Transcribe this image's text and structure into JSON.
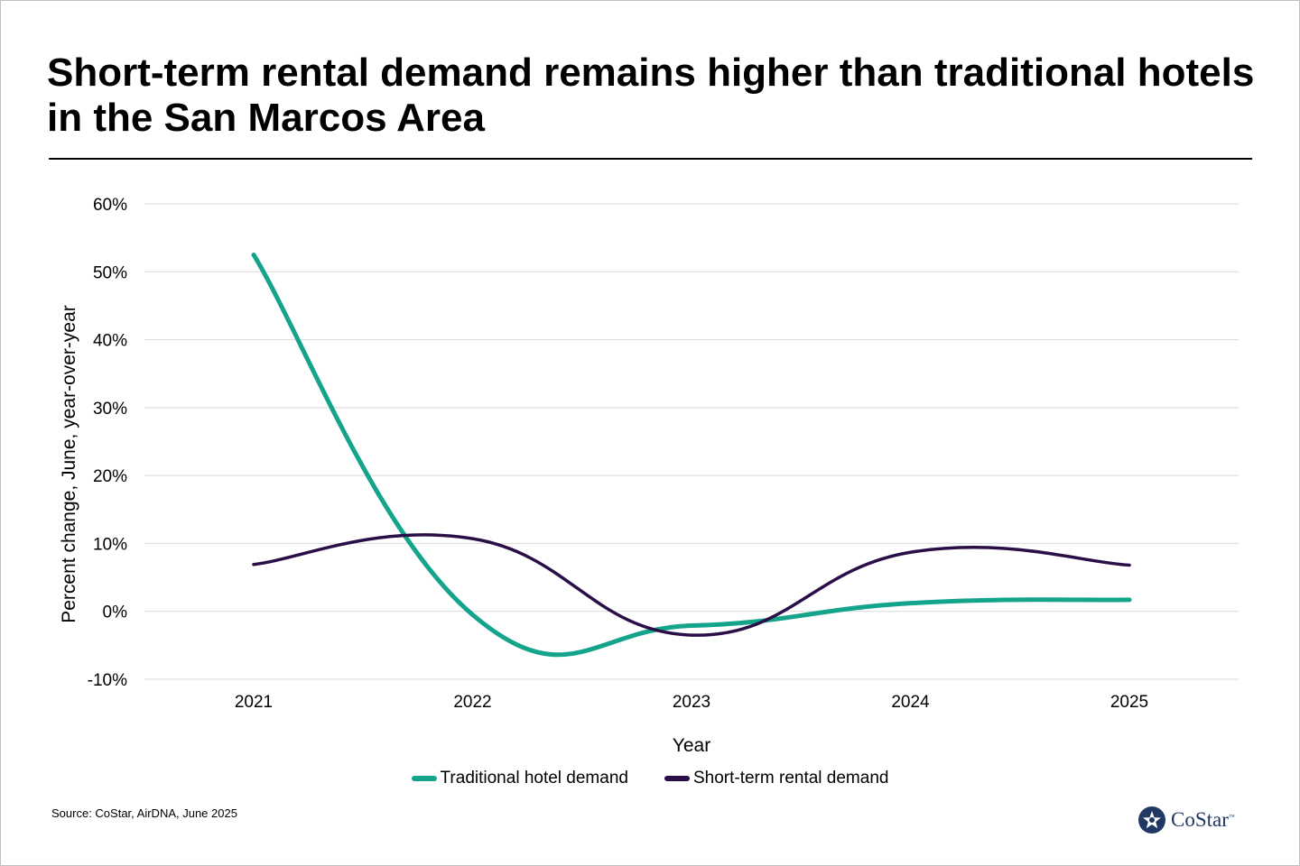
{
  "title": "Short-term rental demand remains higher than traditional hotels in the San Marcos Area",
  "source": "Source: CoStar,  AirDNA, June 2025",
  "logo": {
    "name": "costar-logo",
    "text": "CoStar",
    "tm": "™",
    "color": "#1f3864"
  },
  "chart_data": {
    "type": "line",
    "x": [
      "2021",
      "2022",
      "2023",
      "2024",
      "2025"
    ],
    "xlabel": "Year",
    "ylabel": "Percent change,  June, year-over-year",
    "ylim": [
      -10,
      60
    ],
    "yticks": [
      60,
      50,
      40,
      30,
      20,
      10,
      0,
      -10
    ],
    "ytick_labels": [
      "60%",
      "50%",
      "40%",
      "30%",
      "20%",
      "10%",
      "0%",
      "-10%"
    ],
    "grid": true,
    "legend_position": "bottom",
    "smoothed": true,
    "series": [
      {
        "name": "Traditional hotel demand",
        "color": "#14a38b",
        "values": [
          52.5,
          -0.5,
          -2.1,
          1.2,
          1.7
        ]
      },
      {
        "name": "Short-term rental demand",
        "color": "#2a0e47",
        "values": [
          6.9,
          10.7,
          -3.5,
          8.7,
          6.8
        ]
      }
    ]
  }
}
